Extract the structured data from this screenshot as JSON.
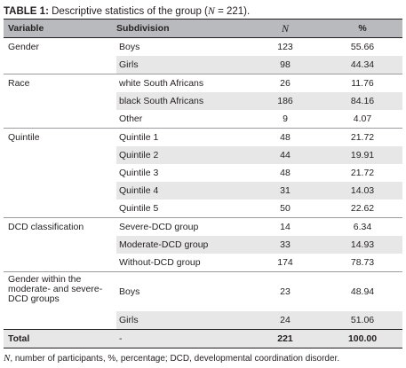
{
  "caption": {
    "label": "TABLE 1:",
    "text_before": " Descriptive statistics of the group (",
    "n_symbol": "N",
    "text_after": " = 221)."
  },
  "headers": {
    "variable": "Variable",
    "subdivision": "Subdivision",
    "n": "N",
    "percent": "%"
  },
  "rows": {
    "gender_boys": {
      "variable": "Gender",
      "subdivision": "Boys",
      "n": "123",
      "percent": "55.66"
    },
    "gender_girls": {
      "subdivision": "Girls",
      "n": "98",
      "percent": "44.34"
    },
    "race_white": {
      "variable": "Race",
      "subdivision": "white South Africans",
      "n": "26",
      "percent": "11.76"
    },
    "race_black": {
      "subdivision": "black South Africans",
      "n": "186",
      "percent": "84.16"
    },
    "race_other": {
      "subdivision": "Other",
      "n": "9",
      "percent": "4.07"
    },
    "quintile_1": {
      "variable": "Quintile",
      "subdivision": "Quintile 1",
      "n": "48",
      "percent": "21.72"
    },
    "quintile_2": {
      "subdivision": "Quintile 2",
      "n": "44",
      "percent": "19.91"
    },
    "quintile_3": {
      "subdivision": "Quintile 3",
      "n": "48",
      "percent": "21.72"
    },
    "quintile_4": {
      "subdivision": "Quintile 4",
      "n": "31",
      "percent": "14.03"
    },
    "quintile_5": {
      "subdivision": "Quintile 5",
      "n": "50",
      "percent": "22.62"
    },
    "dcd_severe": {
      "variable": "DCD classification",
      "subdivision": "Severe-DCD group",
      "n": "14",
      "percent": "6.34"
    },
    "dcd_moderate": {
      "subdivision": "Moderate-DCD group",
      "n": "33",
      "percent": "14.93"
    },
    "dcd_without": {
      "subdivision": "Without-DCD group",
      "n": "174",
      "percent": "78.73"
    },
    "gw_boys": {
      "variable": "Gender within the moderate- and severe-DCD groups",
      "subdivision": "Boys",
      "n": "23",
      "percent": "48.94"
    },
    "gw_girls": {
      "subdivision": "Girls",
      "n": "24",
      "percent": "51.06"
    },
    "total": {
      "variable": "Total",
      "subdivision": "-",
      "n": "221",
      "percent": "100.00"
    }
  },
  "footnote": {
    "n_symbol": "N",
    "text": ", number of participants, %, percentage; DCD, developmental coordination disorder."
  }
}
